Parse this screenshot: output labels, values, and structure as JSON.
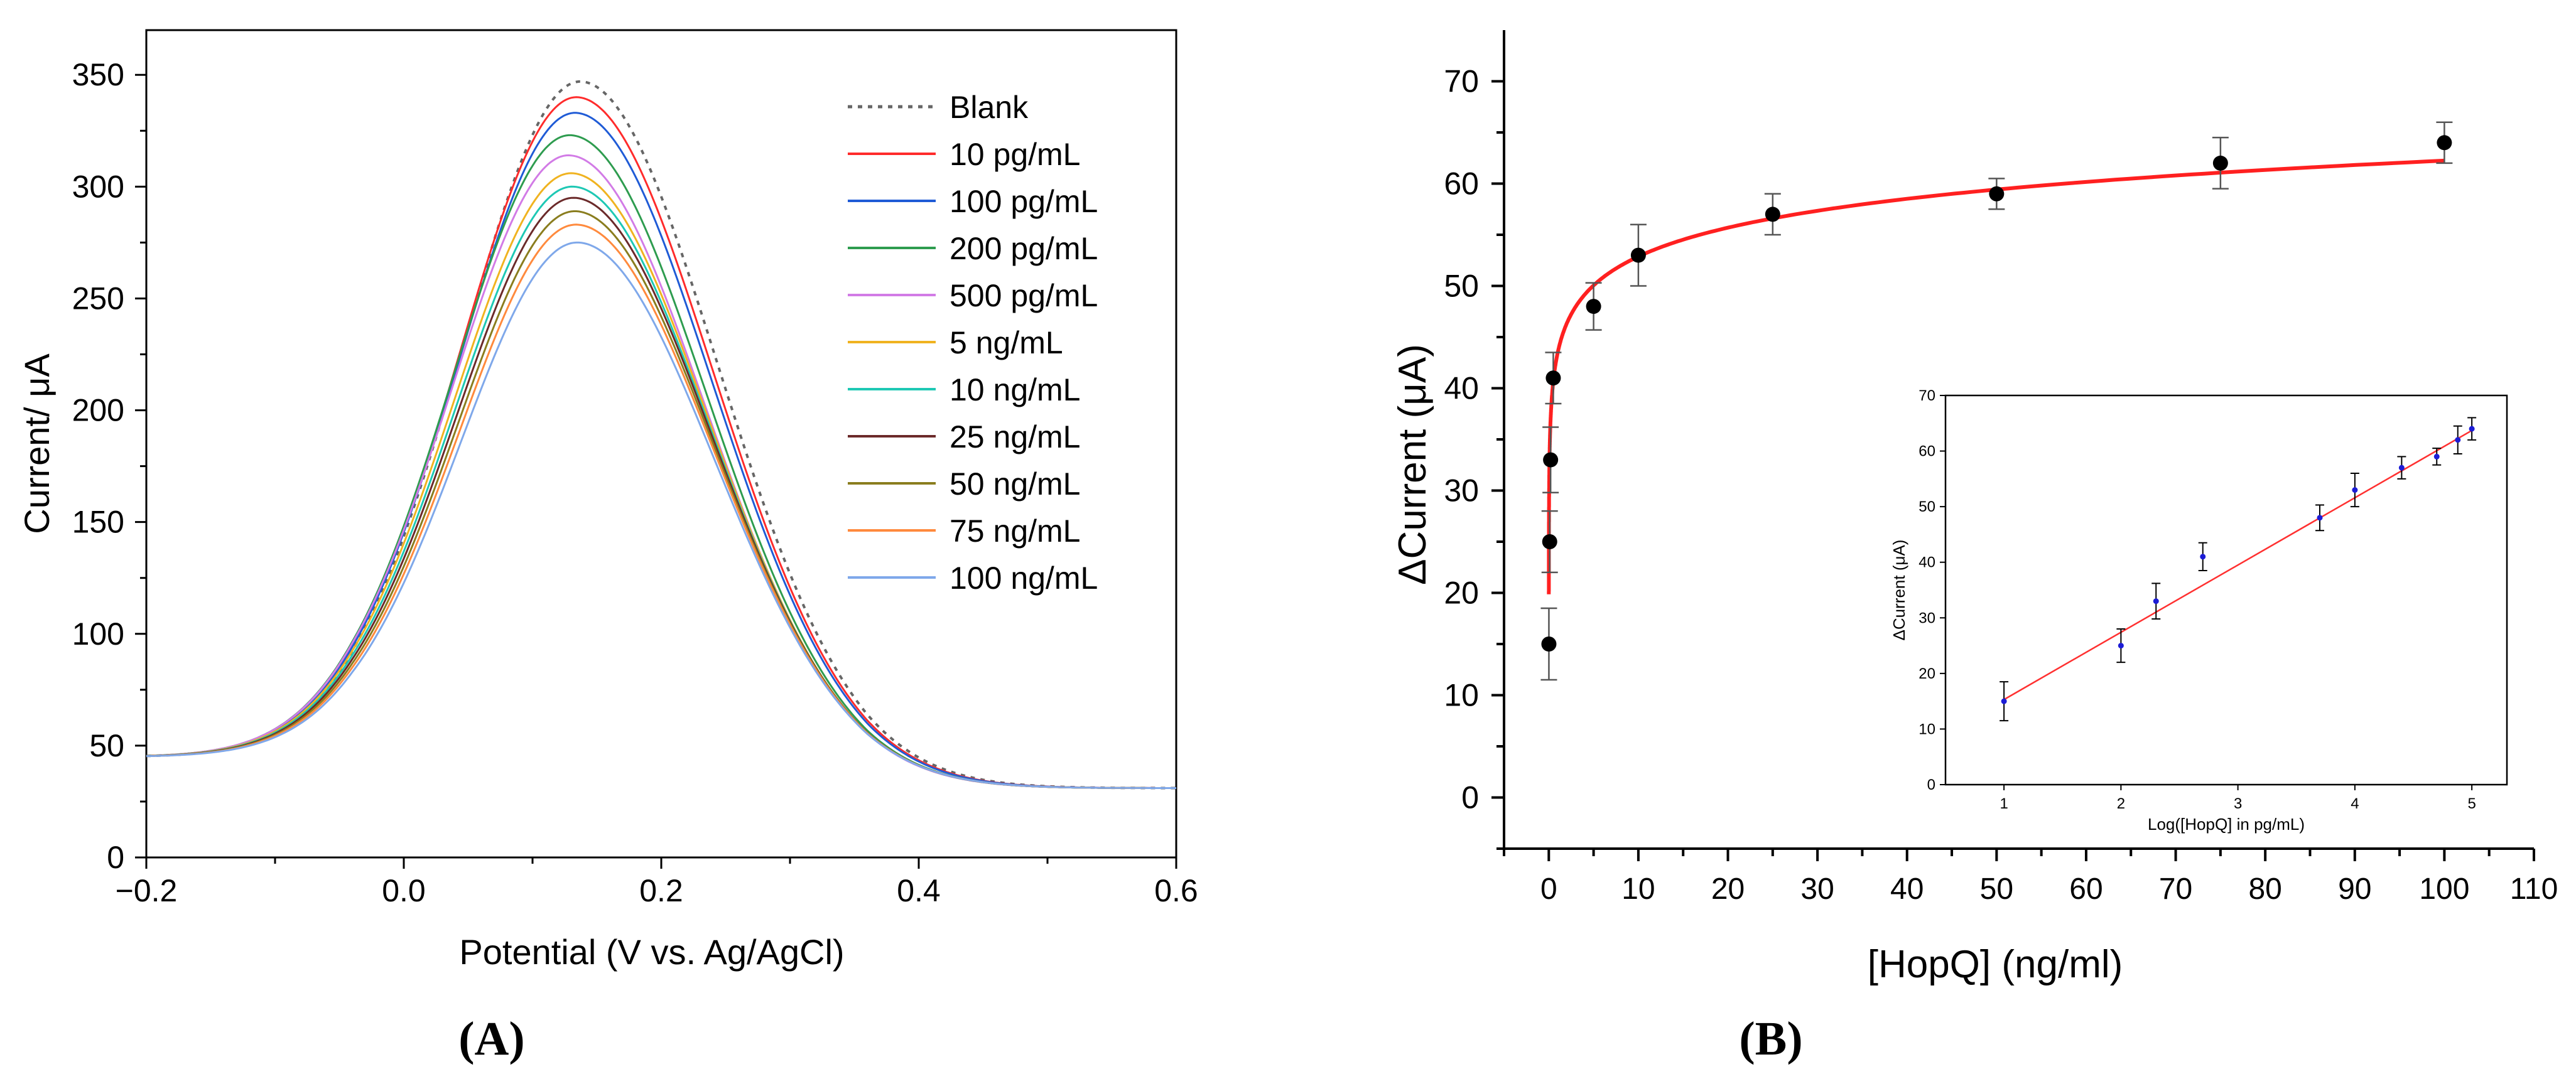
{
  "chart_data": [
    {
      "type": "line",
      "panel_label": "(A)",
      "title": "",
      "xlabel": "Potential (V vs. Ag/AgCl)",
      "ylabel": "Current/ μA",
      "xlim": [
        -0.2,
        0.6
      ],
      "ylim": [
        0,
        370
      ],
      "xticks": [
        -0.2,
        0.0,
        0.2,
        0.4,
        0.6
      ],
      "xtick_labels": [
        "−0.2",
        "0.0",
        "0.2",
        "0.4",
        "0.6"
      ],
      "yticks": [
        0,
        50,
        100,
        150,
        200,
        250,
        300,
        350
      ],
      "ytick_labels": [
        "0",
        "50",
        "100",
        "150",
        "200",
        "250",
        "300",
        "350"
      ],
      "grid": false,
      "legend_position": "top-right",
      "curve_model": {
        "baseline_left": 45,
        "baseline_right": 31,
        "center_v": 0.135,
        "width_left_v": 0.092,
        "width_right_v": 0.105
      },
      "series": [
        {
          "name": "Blank",
          "peak": 347,
          "peak_v": 0.138,
          "color": "#666666",
          "dashed": true
        },
        {
          "name": "10 pg/mL",
          "peak": 340,
          "peak_v": 0.135,
          "color": "#ff2b2b",
          "dashed": false
        },
        {
          "name": "100 pg/mL",
          "peak": 333,
          "peak_v": 0.134,
          "color": "#1f5bd6",
          "dashed": false
        },
        {
          "name": "200 pg/mL",
          "peak": 323,
          "peak_v": 0.13,
          "color": "#2e9c4f",
          "dashed": false
        },
        {
          "name": "500 pg/mL",
          "peak": 314,
          "peak_v": 0.129,
          "color": "#d27be6",
          "dashed": false
        },
        {
          "name": "5 ng/mL",
          "peak": 306,
          "peak_v": 0.131,
          "color": "#f0b320",
          "dashed": false
        },
        {
          "name": "10 ng/mL",
          "peak": 300,
          "peak_v": 0.132,
          "color": "#1ec8b4",
          "dashed": false
        },
        {
          "name": "25 ng/mL",
          "peak": 295,
          "peak_v": 0.133,
          "color": "#6b2a2a",
          "dashed": false
        },
        {
          "name": "50 ng/mL",
          "peak": 289,
          "peak_v": 0.134,
          "color": "#8a7d1e",
          "dashed": false
        },
        {
          "name": "75 ng/mL",
          "peak": 283,
          "peak_v": 0.135,
          "color": "#ff8a3d",
          "dashed": false
        },
        {
          "name": "100 ng/mL",
          "peak": 275,
          "peak_v": 0.136,
          "color": "#7fa8ea",
          "dashed": false
        }
      ]
    },
    {
      "type": "scatter",
      "panel_label": "(B)",
      "title": "",
      "xlabel": "[HopQ] (ng/ml)",
      "ylabel": "ΔCurrent (μA)",
      "xlim": [
        -5,
        110
      ],
      "ylim": [
        -5,
        75
      ],
      "xticks": [
        0,
        10,
        20,
        30,
        40,
        50,
        60,
        70,
        80,
        90,
        100,
        110
      ],
      "yticks": [
        0,
        10,
        20,
        30,
        40,
        50,
        60,
        70
      ],
      "grid": false,
      "fit_color": "#ff2020",
      "fit": {
        "type": "log",
        "slope": 4.07,
        "intercept": 43.5,
        "x_range": [
          0.003,
          100
        ]
      },
      "points": [
        {
          "x": 0.01,
          "y": 15,
          "err": 3.5
        },
        {
          "x": 0.1,
          "y": 25,
          "err": 3
        },
        {
          "x": 0.2,
          "y": 33,
          "err": 3.2
        },
        {
          "x": 0.5,
          "y": 41,
          "err": 2.5
        },
        {
          "x": 5,
          "y": 48,
          "err": 2.3
        },
        {
          "x": 10,
          "y": 53,
          "err": 3
        },
        {
          "x": 25,
          "y": 57,
          "err": 2
        },
        {
          "x": 50,
          "y": 59,
          "err": 1.5
        },
        {
          "x": 75,
          "y": 62,
          "err": 2.5
        },
        {
          "x": 100,
          "y": 64,
          "err": 2
        }
      ],
      "inset": {
        "type": "scatter",
        "xlabel": "Log([HopQ] in pg/mL)",
        "ylabel": "ΔCurrent (μA)",
        "xlim": [
          0.5,
          5.3
        ],
        "ylim": [
          0,
          70
        ],
        "xticks": [
          1,
          2,
          3,
          4,
          5
        ],
        "yticks": [
          0,
          10,
          20,
          30,
          40,
          50,
          60,
          70
        ],
        "point_color": "#1c1cd6",
        "fit_color": "#ff3030",
        "fit": {
          "slope": 12.1,
          "intercept": 3.2,
          "x_range": [
            1,
            5
          ]
        },
        "points": [
          {
            "x": 1.0,
            "y": 15,
            "err": 3.5
          },
          {
            "x": 2.0,
            "y": 25,
            "err": 3
          },
          {
            "x": 2.3,
            "y": 33,
            "err": 3.2
          },
          {
            "x": 2.7,
            "y": 41,
            "err": 2.5
          },
          {
            "x": 3.7,
            "y": 48,
            "err": 2.3
          },
          {
            "x": 4.0,
            "y": 53,
            "err": 3
          },
          {
            "x": 4.4,
            "y": 57,
            "err": 2
          },
          {
            "x": 4.7,
            "y": 59,
            "err": 1.5
          },
          {
            "x": 4.88,
            "y": 62,
            "err": 2.5
          },
          {
            "x": 5.0,
            "y": 64,
            "err": 2
          }
        ]
      }
    }
  ]
}
